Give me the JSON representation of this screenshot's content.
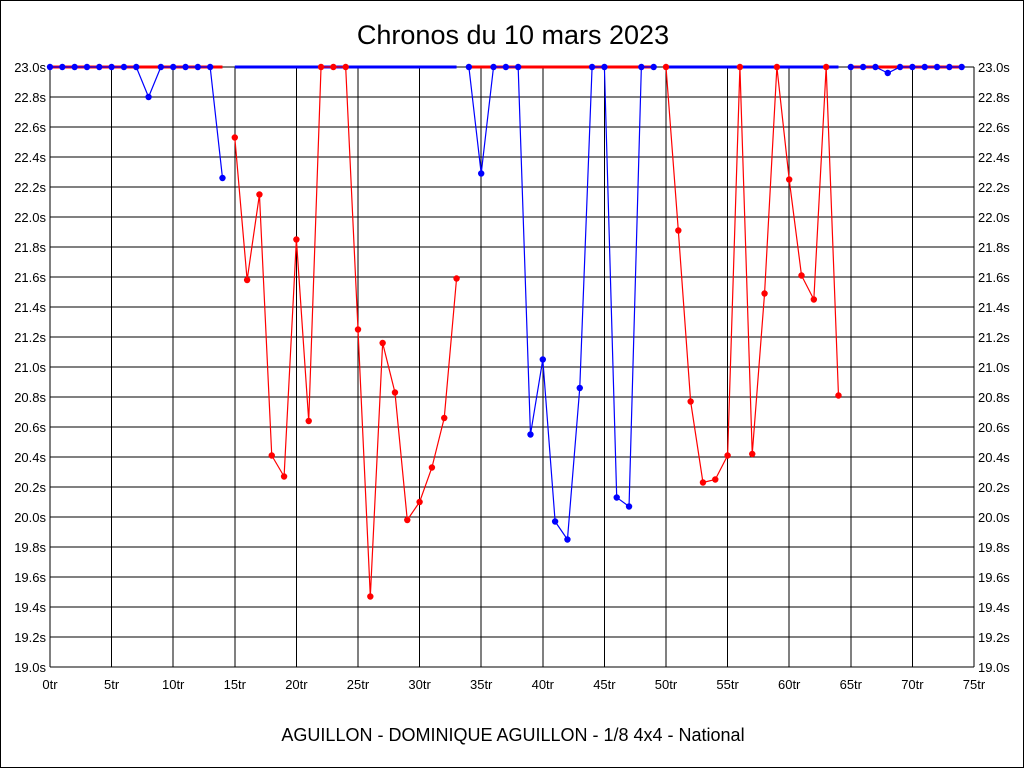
{
  "chart_data": {
    "type": "line",
    "title": "Chronos du 10 mars 2023",
    "xlabel": "AGUILLON - DOMINIQUE AGUILLON - 1/8 4x4 - National",
    "ylabel": "",
    "xlim": [
      0,
      75
    ],
    "ylim": [
      19.0,
      23.0
    ],
    "x_ticks": [
      "0tr",
      "5tr",
      "10tr",
      "15tr",
      "20tr",
      "25tr",
      "30tr",
      "35tr",
      "40tr",
      "45tr",
      "50tr",
      "55tr",
      "60tr",
      "65tr",
      "70tr",
      "75tr"
    ],
    "y_ticks": [
      "19.0s",
      "19.2s",
      "19.4s",
      "19.6s",
      "19.8s",
      "20.0s",
      "20.2s",
      "20.4s",
      "20.6s",
      "20.8s",
      "21.0s",
      "21.2s",
      "21.4s",
      "21.6s",
      "21.8s",
      "22.0s",
      "22.2s",
      "22.4s",
      "22.6s",
      "22.8s",
      "23.0s"
    ],
    "grid": true,
    "colors": {
      "blue": "#0000ff",
      "red": "#ff0000",
      "grid": "#000000"
    },
    "series": [
      {
        "color": "#0000ff",
        "band_color": "#ff0000",
        "x": [
          0,
          1,
          2,
          3,
          4,
          5,
          6,
          7,
          8,
          9,
          10,
          11,
          12,
          13,
          14
        ],
        "values": [
          23.0,
          23.0,
          23.0,
          23.0,
          23.0,
          23.0,
          23.0,
          23.0,
          22.8,
          23.0,
          23.0,
          23.0,
          23.0,
          23.0,
          22.26
        ]
      },
      {
        "color": "#ff0000",
        "band_color": "#0000ff",
        "x": [
          15,
          16,
          17,
          18,
          19,
          20,
          21,
          22,
          23,
          24,
          25,
          26,
          27,
          28,
          29,
          30,
          31,
          32,
          33
        ],
        "values": [
          22.53,
          21.58,
          22.15,
          20.41,
          20.27,
          21.85,
          20.64,
          23.0,
          23.0,
          23.0,
          21.25,
          19.47,
          21.16,
          20.83,
          19.98,
          20.1,
          20.33,
          20.66,
          21.59
        ]
      },
      {
        "color": "#0000ff",
        "band_color": "#ff0000",
        "x": [
          34,
          35,
          36,
          37,
          38,
          39,
          40,
          41,
          42,
          43,
          44,
          45,
          46,
          47,
          48,
          49
        ],
        "values": [
          23.0,
          22.29,
          23.0,
          23.0,
          23.0,
          20.55,
          21.05,
          19.97,
          19.85,
          20.86,
          23.0,
          23.0,
          20.13,
          20.07,
          23.0,
          23.0
        ]
      },
      {
        "color": "#ff0000",
        "band_color": "#0000ff",
        "x": [
          50,
          51,
          52,
          53,
          54,
          55,
          56,
          57,
          58,
          59,
          60,
          61,
          62,
          63,
          64
        ],
        "values": [
          23.0,
          21.91,
          20.77,
          20.23,
          20.25,
          20.41,
          23.0,
          20.42,
          21.49,
          23.0,
          22.25,
          21.61,
          21.45,
          23.0,
          20.81
        ]
      },
      {
        "color": "#0000ff",
        "band_color": "#ff0000",
        "x": [
          65,
          66,
          67,
          68,
          69,
          70,
          71,
          72,
          73,
          74
        ],
        "values": [
          23.0,
          23.0,
          23.0,
          22.96,
          23.0,
          23.0,
          23.0,
          23.0,
          23.0,
          23.0
        ]
      }
    ]
  }
}
